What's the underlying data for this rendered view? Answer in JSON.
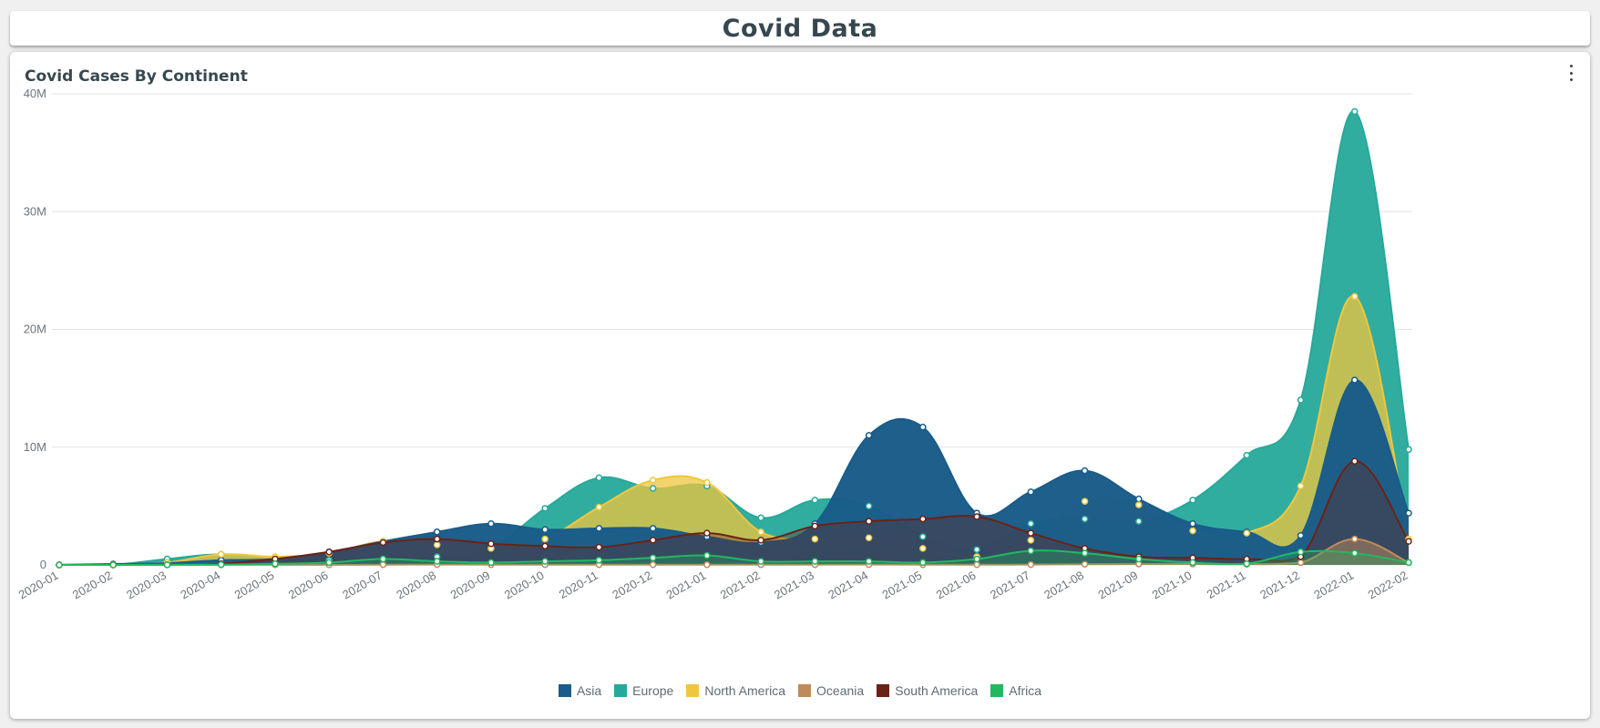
{
  "page": {
    "title": "Covid Data"
  },
  "card": {
    "title": "Covid Cases By Continent"
  },
  "colors": {
    "Asia": "#1a5c8a",
    "Europe": "#26a99a",
    "North America": "#f0c63e",
    "Oceania": "#c08a5a",
    "South America": "#6b2216",
    "Africa": "#22b861"
  },
  "chart_data": {
    "type": "area",
    "title": "Covid Cases By Continent",
    "xlabel": "",
    "ylabel": "",
    "ylim": [
      0,
      40000000
    ],
    "yticks": [
      0,
      10000000,
      20000000,
      30000000,
      40000000
    ],
    "ytick_labels": [
      "0",
      "10M",
      "20M",
      "30M",
      "40M"
    ],
    "legend_position": "bottom",
    "grid": true,
    "categories": [
      "2020-01",
      "2020-02",
      "2020-03",
      "2020-04",
      "2020-05",
      "2020-06",
      "2020-07",
      "2020-08",
      "2020-09",
      "2020-10",
      "2020-11",
      "2020-12",
      "2021-01",
      "2021-02",
      "2021-03",
      "2021-04",
      "2021-05",
      "2021-06",
      "2021-07",
      "2021-08",
      "2021-09",
      "2021-10",
      "2021-11",
      "2021-12",
      "2022-01",
      "2022-02"
    ],
    "series": [
      {
        "name": "Asia",
        "values": [
          10000,
          80000,
          150000,
          400000,
          500000,
          1100000,
          2000000,
          2800000,
          3500000,
          3000000,
          3100000,
          3100000,
          2400000,
          1900000,
          3500000,
          11000000,
          11700000,
          4400000,
          6200000,
          8000000,
          5600000,
          3500000,
          2800000,
          2500000,
          15700000,
          4400000
        ]
      },
      {
        "name": "Europe",
        "values": [
          1000,
          10000,
          500000,
          900000,
          500000,
          400000,
          500000,
          700000,
          1400000,
          4800000,
          7400000,
          6500000,
          6700000,
          4000000,
          5500000,
          5000000,
          2400000,
          1300000,
          3500000,
          3900000,
          3700000,
          5500000,
          9300000,
          14000000,
          38500000,
          9800000
        ]
      },
      {
        "name": "North America",
        "values": [
          0,
          0,
          200000,
          900000,
          700000,
          1000000,
          2000000,
          1700000,
          1400000,
          2200000,
          4900000,
          7200000,
          7000000,
          2800000,
          2200000,
          2300000,
          1400000,
          700000,
          2100000,
          5400000,
          5100000,
          2900000,
          2700000,
          6700000,
          22800000,
          2200000
        ]
      },
      {
        "name": "Oceania",
        "values": [
          0,
          0,
          10000,
          10000,
          10000,
          10000,
          20000,
          30000,
          20000,
          20000,
          20000,
          20000,
          20000,
          20000,
          20000,
          30000,
          20000,
          20000,
          30000,
          60000,
          80000,
          80000,
          60000,
          200000,
          2200000,
          200000
        ]
      },
      {
        "name": "South America",
        "values": [
          0,
          0,
          10000,
          100000,
          500000,
          1100000,
          1900000,
          2200000,
          1800000,
          1600000,
          1500000,
          2100000,
          2700000,
          2100000,
          3300000,
          3700000,
          3900000,
          4100000,
          2700000,
          1400000,
          700000,
          600000,
          500000,
          700000,
          8800000,
          2000000
        ]
      },
      {
        "name": "Africa",
        "values": [
          0,
          0,
          10000,
          30000,
          100000,
          200000,
          500000,
          300000,
          200000,
          300000,
          400000,
          600000,
          800000,
          300000,
          300000,
          300000,
          200000,
          500000,
          1200000,
          1000000,
          500000,
          200000,
          100000,
          1100000,
          1000000,
          200000
        ]
      }
    ]
  }
}
